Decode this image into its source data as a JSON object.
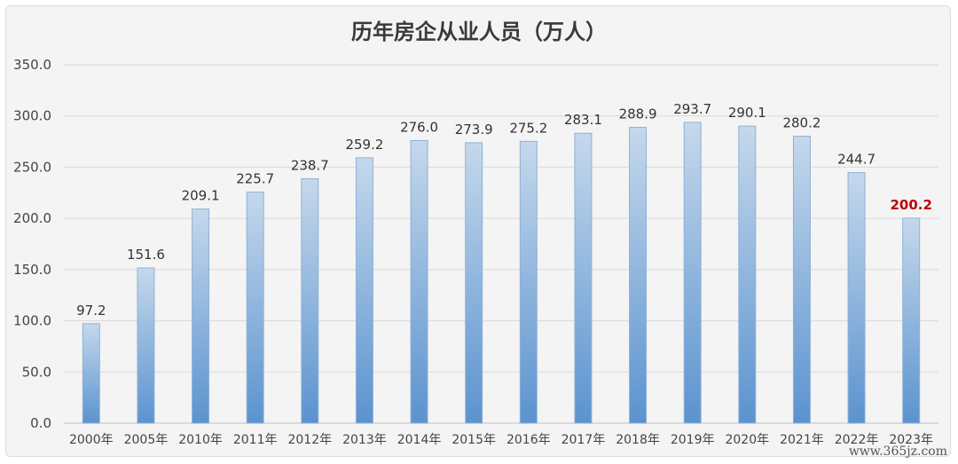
{
  "chart_data": {
    "type": "bar",
    "title": "历年房企从业人员（万人）",
    "categories": [
      "2000年",
      "2005年",
      "2010年",
      "2011年",
      "2012年",
      "2013年",
      "2014年",
      "2015年",
      "2016年",
      "2017年",
      "2018年",
      "2019年",
      "2020年",
      "2021年",
      "2022年",
      "2023年"
    ],
    "values": [
      97.2,
      151.6,
      209.1,
      225.7,
      238.7,
      259.2,
      276.0,
      273.9,
      275.2,
      283.1,
      288.9,
      293.7,
      290.1,
      280.2,
      244.7,
      200.2
    ],
    "value_labels": [
      "97.2",
      "151.6",
      "209.1",
      "225.7",
      "238.7",
      "259.2",
      "276.0",
      "273.9",
      "275.2",
      "283.1",
      "288.9",
      "293.7",
      "290.1",
      "280.2",
      "244.7",
      "200.2"
    ],
    "highlight_index": 15,
    "highlight_color": "#c00000",
    "ylim": [
      0,
      350
    ],
    "y_ticks": [
      "0.0",
      "50.0",
      "100.0",
      "150.0",
      "200.0",
      "250.0",
      "300.0",
      "350.0"
    ],
    "grid": true,
    "bar_color_top": "#c5d8ec",
    "bar_color_bottom": "#5b93cf"
  },
  "watermark": "www.365jz.com"
}
